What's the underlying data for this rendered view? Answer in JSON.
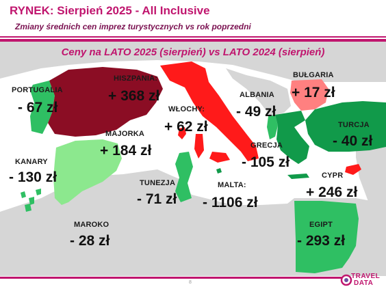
{
  "header": {
    "title": "RYNEK: Sierpień 2025 - All Inclusive",
    "subtitle": "Zmiany średnich cen imprez turystycznych vs rok poprzedni"
  },
  "map": {
    "heading": "Ceny na LATO 2025 (sierpień) vs  LATO 2024 (sierpień)",
    "colors": {
      "sea": "#ffffff",
      "land": "#d6d6d6",
      "strong_increase": "#8b0d24",
      "increase": "#ff1a1a",
      "small_increase": "#ff8080",
      "strong_decrease": "#119a4a",
      "decrease": "#2fbf63",
      "small_decrease": "#8ce88e"
    },
    "regions": [
      {
        "name": "PORTUGALIA",
        "change": "- 67 zł"
      },
      {
        "name": "HISZPANIA:",
        "change": "+ 368 zł"
      },
      {
        "name": "WŁOCHY:",
        "change": "+ 62 zł"
      },
      {
        "name": "ALBANIA",
        "change": "- 49 zł"
      },
      {
        "name": "BUŁGARIA",
        "change": "+ 17 zł"
      },
      {
        "name": "TURCJA",
        "change": "- 40 zł"
      },
      {
        "name": "MAJORKA",
        "change": "+ 184 zł"
      },
      {
        "name": "GRECJA",
        "change": "- 105 zł"
      },
      {
        "name": "KANARY",
        "change": "- 130 zł"
      },
      {
        "name": "TUNEZJA",
        "change": "- 71 zł"
      },
      {
        "name": "MALTA:",
        "change": "- 1106 zł"
      },
      {
        "name": "CYPR",
        "change": "+ 246 zł"
      },
      {
        "name": "MAROKO",
        "change": "- 28 zł"
      },
      {
        "name": "EGIPT",
        "change": "- 293 zł"
      }
    ]
  },
  "footer": {
    "page_number": "8",
    "logo_line1": "TRAVEL",
    "logo_line2": "DATA"
  }
}
